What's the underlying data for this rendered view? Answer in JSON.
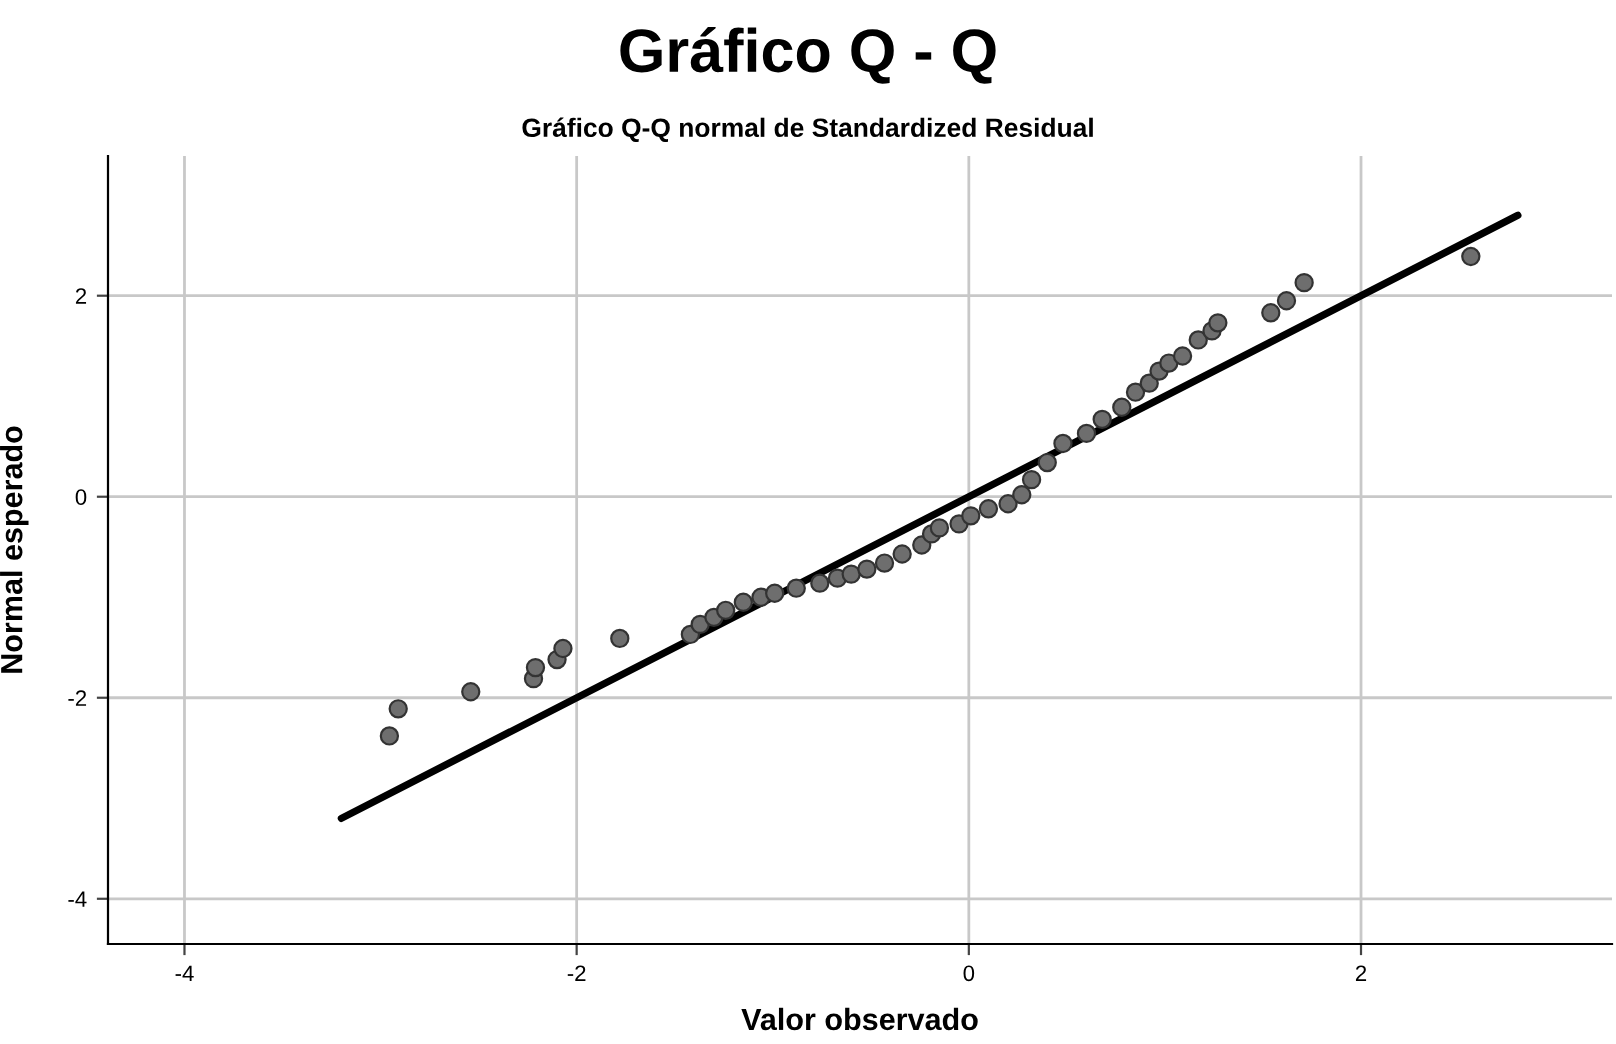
{
  "chart_data": {
    "type": "scatter",
    "title": "Gráfico Q - Q",
    "subtitle": "Gráfico Q-Q normal de Standardized Residual",
    "xlabel": "Valor observado",
    "ylabel": "Normal esperado",
    "xlim": [
      -4.39,
      3.28
    ],
    "ylim": [
      -4.45,
      3.39
    ],
    "xticks": [
      -4,
      -2,
      0,
      2
    ],
    "yticks": [
      -4,
      -2,
      0,
      2
    ],
    "grid": true,
    "series": [
      {
        "marker": "circle",
        "color": "#6e6e6e",
        "x": [
          -2.955,
          -2.91,
          -2.54,
          -2.22,
          -2.21,
          -2.1,
          -2.07,
          -1.78,
          -1.42,
          -1.37,
          -1.3,
          -1.24,
          -1.15,
          -1.06,
          -0.99,
          -0.88,
          -0.76,
          -0.67,
          -0.6,
          -0.52,
          -0.43,
          -0.34,
          -0.24,
          -0.19,
          -0.15,
          -0.05,
          0.01,
          0.1,
          0.2,
          0.27,
          0.32,
          0.4,
          0.48,
          0.6,
          0.68,
          0.78,
          0.85,
          0.92,
          0.97,
          1.02,
          1.09,
          1.17,
          1.24,
          1.27,
          1.54,
          1.62,
          1.71,
          2.56
        ],
        "values": [
          -2.38,
          -2.11,
          -1.94,
          -1.81,
          -1.7,
          -1.62,
          -1.51,
          -1.41,
          -1.37,
          -1.27,
          -1.2,
          -1.13,
          -1.05,
          -1.0,
          -0.96,
          -0.91,
          -0.86,
          -0.81,
          -0.77,
          -0.72,
          -0.66,
          -0.57,
          -0.48,
          -0.37,
          -0.31,
          -0.27,
          -0.19,
          -0.12,
          -0.07,
          0.02,
          0.17,
          0.34,
          0.53,
          0.63,
          0.77,
          0.89,
          1.04,
          1.13,
          1.25,
          1.33,
          1.4,
          1.56,
          1.65,
          1.73,
          1.83,
          1.95,
          2.13,
          2.39
        ]
      },
      {
        "type": "line",
        "color": "#000000",
        "x": [
          -3.2,
          2.8
        ],
        "values": [
          -3.2,
          2.8
        ]
      }
    ]
  }
}
